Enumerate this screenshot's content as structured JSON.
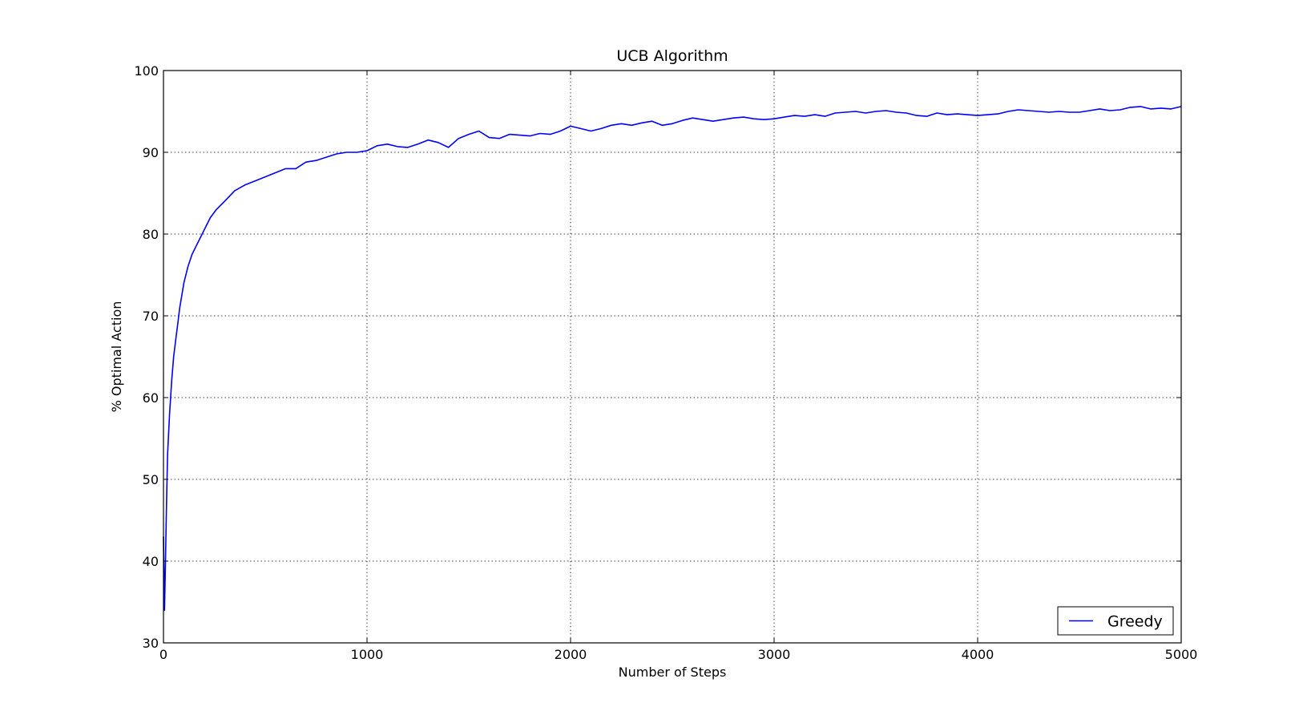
{
  "chart_data": {
    "type": "line",
    "title": "UCB Algorithm",
    "xlabel": "Number of Steps",
    "ylabel": "% Optimal Action",
    "xlim": [
      0,
      5000
    ],
    "ylim": [
      30,
      100
    ],
    "xticks": [
      0,
      1000,
      2000,
      3000,
      4000,
      5000
    ],
    "yticks": [
      30,
      40,
      50,
      60,
      70,
      80,
      90,
      100
    ],
    "grid": true,
    "legend_position": "lower-right",
    "series": [
      {
        "name": "Greedy",
        "color": "#0000ff",
        "x": [
          0,
          5,
          10,
          15,
          20,
          30,
          40,
          50,
          60,
          70,
          80,
          90,
          100,
          120,
          140,
          160,
          180,
          200,
          230,
          260,
          300,
          350,
          400,
          450,
          500,
          550,
          600,
          650,
          700,
          750,
          800,
          850,
          900,
          950,
          1000,
          1050,
          1100,
          1150,
          1200,
          1250,
          1300,
          1350,
          1400,
          1450,
          1500,
          1550,
          1600,
          1650,
          1700,
          1750,
          1800,
          1850,
          1900,
          1950,
          2000,
          2050,
          2100,
          2150,
          2200,
          2250,
          2300,
          2350,
          2400,
          2450,
          2500,
          2550,
          2600,
          2650,
          2700,
          2750,
          2800,
          2850,
          2900,
          2950,
          3000,
          3050,
          3100,
          3150,
          3200,
          3250,
          3300,
          3350,
          3400,
          3450,
          3500,
          3550,
          3600,
          3650,
          3700,
          3750,
          3800,
          3850,
          3900,
          3950,
          4000,
          4050,
          4100,
          4150,
          4200,
          4250,
          4300,
          4350,
          4400,
          4450,
          4500,
          4550,
          4600,
          4650,
          4700,
          4750,
          4800,
          4850,
          4900,
          4950,
          5000
        ],
        "y": [
          43,
          34,
          40,
          47,
          53,
          58,
          62,
          65,
          67,
          69,
          71,
          72.5,
          74,
          76,
          77.5,
          78.5,
          79.5,
          80.5,
          82,
          83,
          84,
          85.3,
          86,
          86.5,
          87,
          87.5,
          88,
          88,
          88.8,
          89,
          89.4,
          89.8,
          90,
          90,
          90.2,
          90.8,
          91,
          90.7,
          90.6,
          91,
          91.5,
          91.2,
          90.6,
          91.7,
          92.2,
          92.6,
          91.8,
          91.7,
          92.2,
          92.1,
          92,
          92.3,
          92.2,
          92.6,
          93.2,
          92.9,
          92.6,
          92.9,
          93.3,
          93.5,
          93.3,
          93.6,
          93.8,
          93.3,
          93.5,
          93.9,
          94.2,
          94,
          93.8,
          94,
          94.2,
          94.3,
          94.1,
          94,
          94.1,
          94.3,
          94.5,
          94.4,
          94.6,
          94.4,
          94.8,
          94.9,
          95,
          94.8,
          95,
          95.1,
          94.9,
          94.8,
          94.5,
          94.4,
          94.8,
          94.6,
          94.7,
          94.6,
          94.5,
          94.6,
          94.7,
          95,
          95.2,
          95.1,
          95,
          94.9,
          95,
          94.9,
          94.9,
          95.1,
          95.3,
          95.1,
          95.2,
          95.5,
          95.6,
          95.3,
          95.4,
          95.3,
          95.6
        ]
      }
    ]
  }
}
